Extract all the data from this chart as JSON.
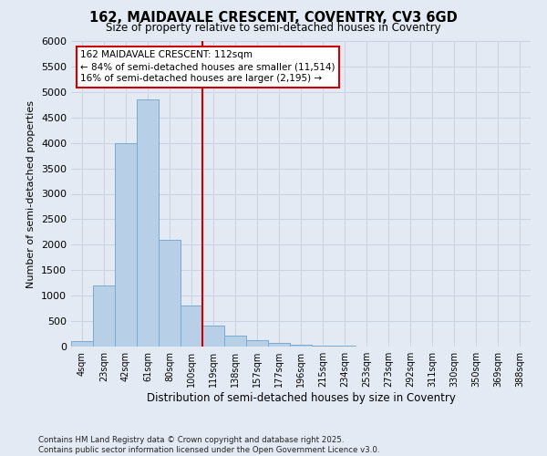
{
  "title_line1": "162, MAIDAVALE CRESCENT, COVENTRY, CV3 6GD",
  "title_line2": "Size of property relative to semi-detached houses in Coventry",
  "xlabel": "Distribution of semi-detached houses by size in Coventry",
  "ylabel": "Number of semi-detached properties",
  "categories": [
    "4sqm",
    "23sqm",
    "42sqm",
    "61sqm",
    "80sqm",
    "100sqm",
    "119sqm",
    "138sqm",
    "157sqm",
    "177sqm",
    "196sqm",
    "215sqm",
    "234sqm",
    "253sqm",
    "273sqm",
    "292sqm",
    "311sqm",
    "330sqm",
    "350sqm",
    "369sqm",
    "388sqm"
  ],
  "values": [
    100,
    1200,
    4000,
    4850,
    2100,
    800,
    420,
    220,
    130,
    75,
    40,
    20,
    10,
    5,
    3,
    2,
    1,
    0,
    0,
    0,
    0
  ],
  "bar_color": "#b8cfe8",
  "bar_edge_color": "#7aaad0",
  "vline_color": "#cc0000",
  "vline_xindex": 5,
  "annotation_line1": "162 MAIDAVALE CRESCENT: 112sqm",
  "annotation_line2": "← 84% of semi-detached houses are smaller (11,514)",
  "annotation_line3": "16% of semi-detached houses are larger (2,195) →",
  "annotation_box_color": "#cc0000",
  "ylim_max": 6000,
  "yticks": [
    0,
    500,
    1000,
    1500,
    2000,
    2500,
    3000,
    3500,
    4000,
    4500,
    5000,
    5500,
    6000
  ],
  "grid_color": "#c8d4e4",
  "background_color": "#e4eaf4",
  "footer_line1": "Contains HM Land Registry data © Crown copyright and database right 2025.",
  "footer_line2": "Contains public sector information licensed under the Open Government Licence v3.0."
}
